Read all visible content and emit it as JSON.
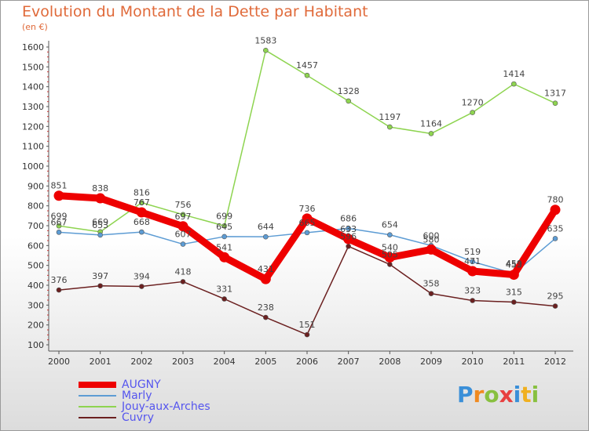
{
  "chart_data": {
    "type": "line",
    "title": "Evolution du Montant de la Dette par Habitant",
    "subtitle": "(en €)",
    "x": [
      "2000",
      "2001",
      "2002",
      "2003",
      "2004",
      "2005",
      "2006",
      "2007",
      "2008",
      "2009",
      "2010",
      "2011",
      "2012"
    ],
    "ylim": [
      100,
      1600
    ],
    "yticks": [
      100,
      200,
      300,
      400,
      500,
      600,
      700,
      800,
      900,
      1000,
      1100,
      1200,
      1300,
      1400,
      1500,
      1600
    ],
    "grid": false,
    "legend_position": "bottom-left",
    "series": [
      {
        "name": "AUGNY",
        "color": "#ee0000",
        "values": [
          851,
          838,
          767,
          697,
          541,
          431,
          736,
          633,
          540,
          580,
          471,
          453,
          780
        ]
      },
      {
        "name": "Marly",
        "color": "#5d9cd4",
        "values": [
          667,
          653,
          668,
          607,
          645,
          644,
          665,
          686,
          654,
          600,
          519,
          459,
          635
        ]
      },
      {
        "name": "Jouy-aux-Arches",
        "color": "#8ed450",
        "values": [
          699,
          669,
          816,
          756,
          699,
          1583,
          1457,
          1328,
          1197,
          1164,
          1270,
          1414,
          1317
        ]
      },
      {
        "name": "Cuvry",
        "color": "#6b2020",
        "values": [
          376,
          397,
          394,
          418,
          331,
          238,
          151,
          596,
          505,
          358,
          323,
          315,
          295
        ]
      }
    ]
  },
  "branding": {
    "logo_letters": [
      "P",
      "r",
      "o",
      "x",
      "i",
      "t",
      "i"
    ],
    "logo_colors": [
      "#3a8fd8",
      "#f08a20",
      "#88c040",
      "#e84040",
      "#3a8fd8",
      "#f0b020",
      "#88c040"
    ]
  }
}
